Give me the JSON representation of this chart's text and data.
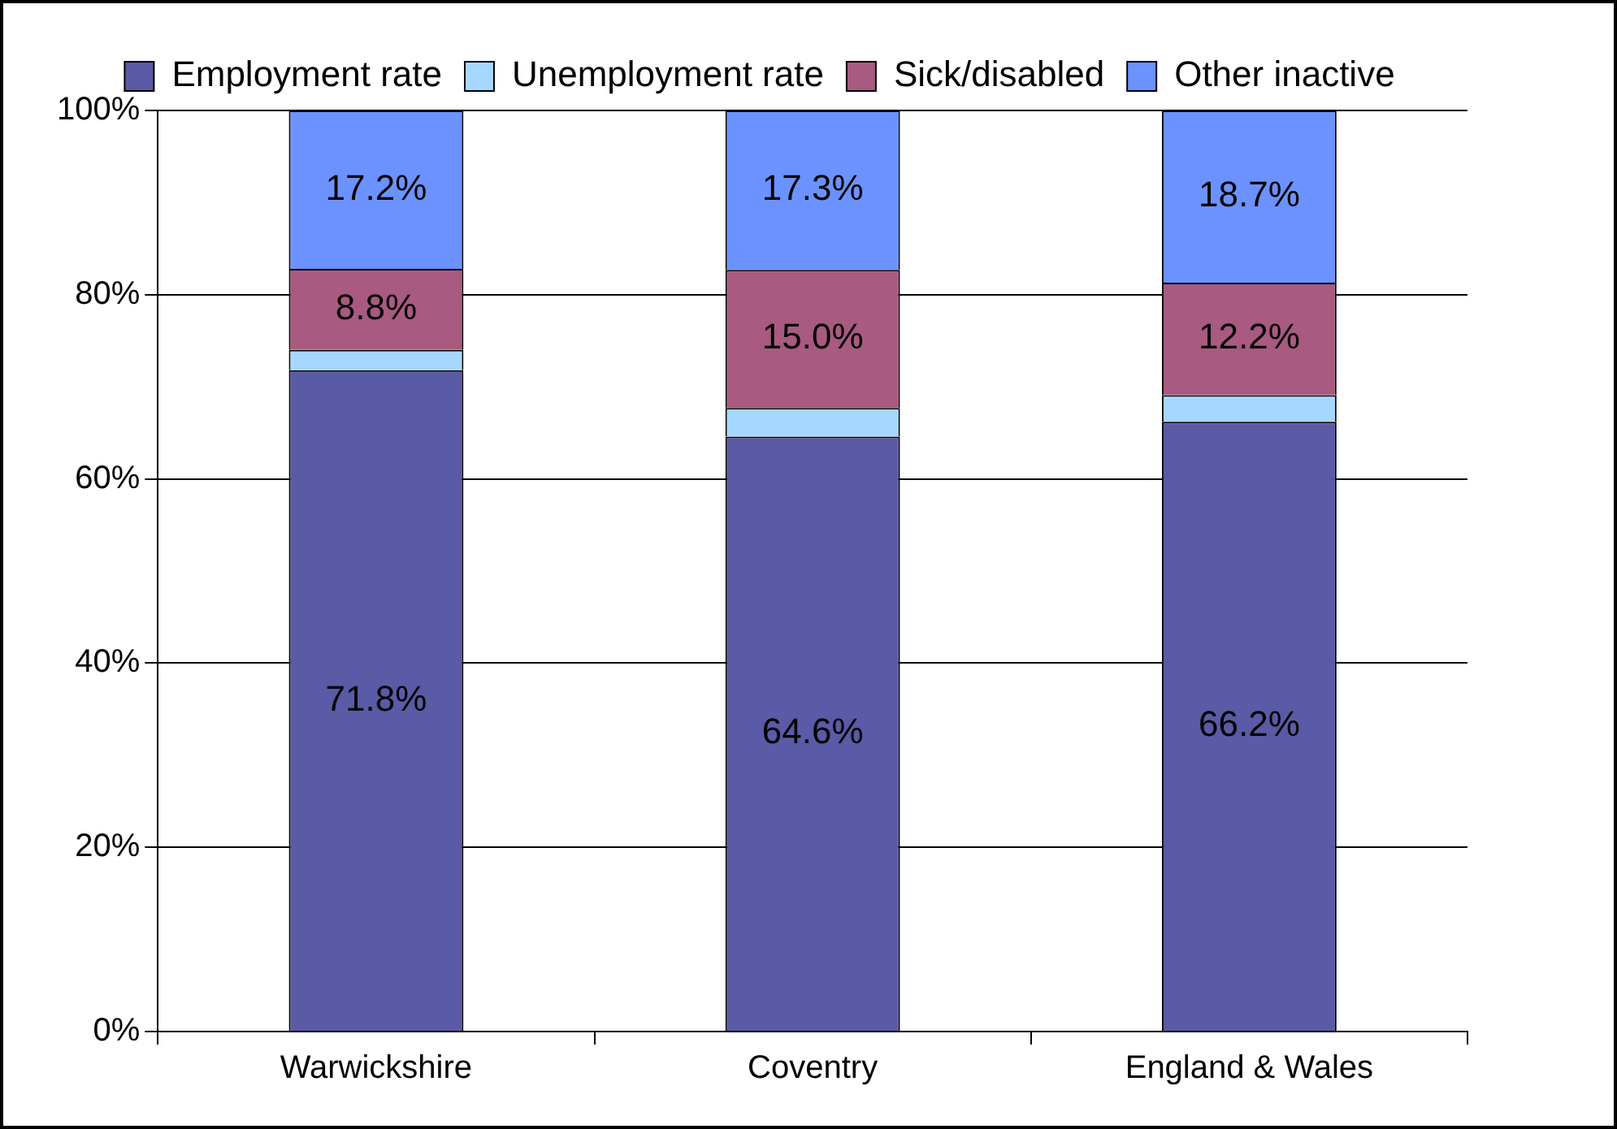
{
  "chart_data": {
    "type": "bar",
    "stacked": true,
    "categories": [
      "Warwickshire",
      "Coventry",
      "England & Wales"
    ],
    "series": [
      {
        "name": "Employment rate",
        "color": "#5a5aa6",
        "values": [
          71.8,
          64.6,
          66.2
        ],
        "value_labels": [
          "71.8%",
          "64.6%",
          "66.2%"
        ]
      },
      {
        "name": "Unemployment rate",
        "color": "#a6d8ff",
        "values": [
          2.2,
          3.1,
          2.9
        ],
        "value_labels": [
          null,
          null,
          null
        ]
      },
      {
        "name": "Sick/disabled",
        "color": "#a85a80",
        "values": [
          8.8,
          15.0,
          12.2
        ],
        "value_labels": [
          "8.8%",
          "15.0%",
          "12.2%"
        ]
      },
      {
        "name": "Other inactive",
        "color": "#6b92ff",
        "values": [
          17.2,
          17.3,
          18.7
        ],
        "value_labels": [
          "17.2%",
          "17.3%",
          "18.7%"
        ]
      }
    ],
    "ylim": [
      0,
      100
    ],
    "yticks": [
      {
        "value": 0,
        "label": "0%"
      },
      {
        "value": 20,
        "label": "20%"
      },
      {
        "value": 40,
        "label": "40%"
      },
      {
        "value": 60,
        "label": "60%"
      },
      {
        "value": 80,
        "label": "80%"
      },
      {
        "value": 100,
        "label": "100%"
      }
    ],
    "grid": "y",
    "legend": "top"
  }
}
